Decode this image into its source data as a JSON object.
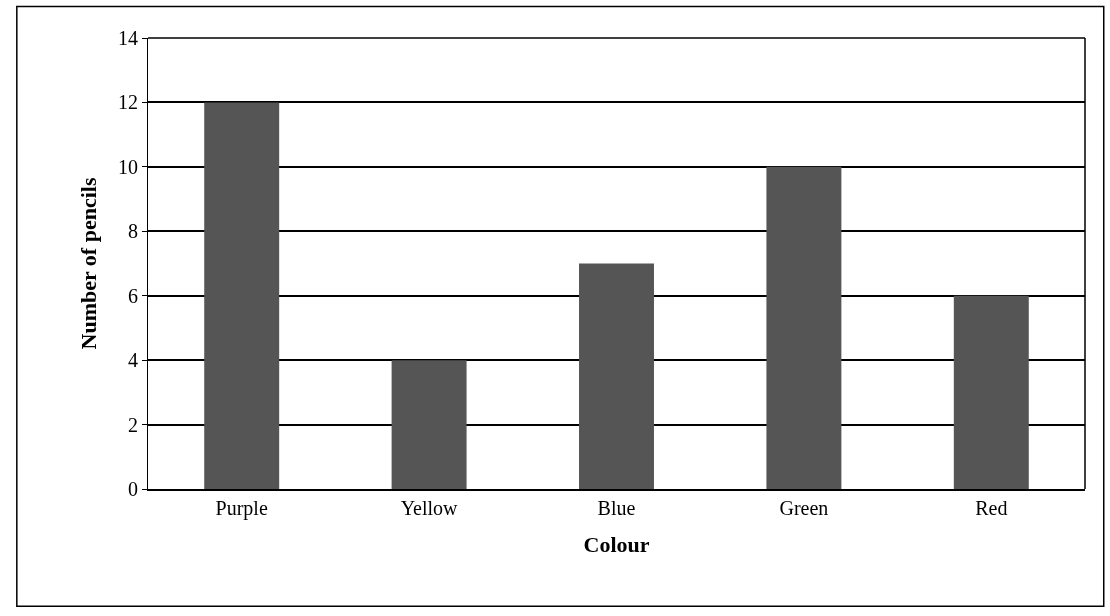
{
  "chart_data": {
    "type": "bar",
    "xlabel": "Colour",
    "ylabel": "Number of pencils",
    "categories": [
      "Purple",
      "Yellow",
      "Blue",
      "Green",
      "Red"
    ],
    "values": [
      12,
      4,
      7,
      10,
      6
    ],
    "color": "#555555",
    "ylim": [
      0,
      14
    ],
    "yticks": [
      0,
      2,
      4,
      6,
      8,
      10,
      12,
      14
    ],
    "grid": "y",
    "legend": false
  }
}
